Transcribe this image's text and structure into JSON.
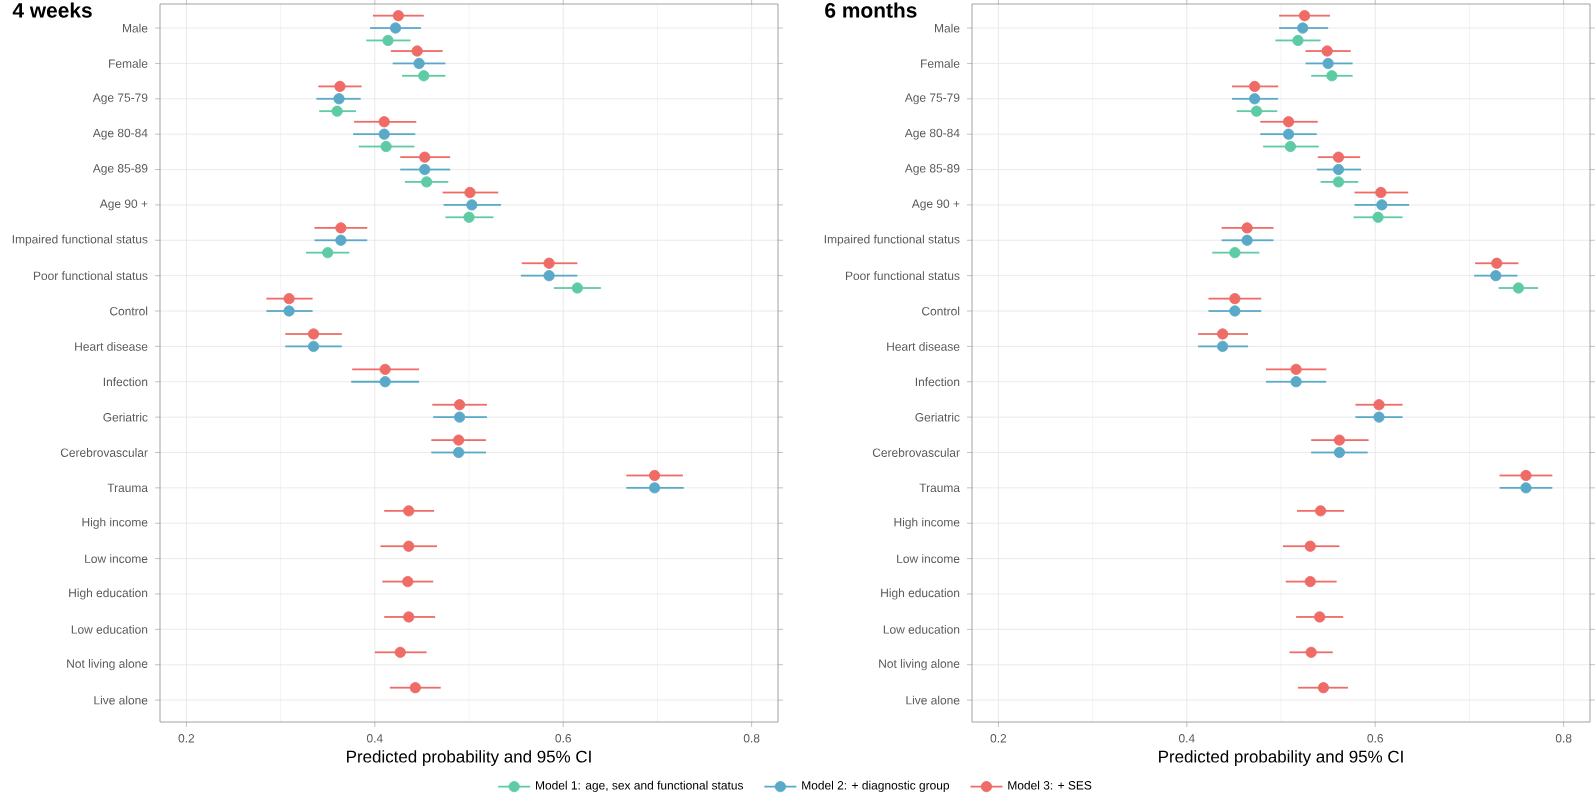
{
  "chart_data": [
    {
      "type": "scatter",
      "orientation": "horizontal",
      "title": "4 weeks",
      "xlabel": "Predicted probability and 95% CI",
      "categories": [
        "Male",
        "Female",
        "Age 75-79",
        "Age 80-84",
        "Age 85-89",
        "Age 90 +",
        "Impaired functional status",
        "Poor functional status",
        "Control",
        "Heart disease",
        "Infection",
        "Geriatric",
        "Cerebrovascular",
        "Trauma",
        "High income",
        "Low income",
        "High education",
        "Low education",
        "Not living alone",
        "Live alone"
      ],
      "xlim": [
        0.172,
        0.828
      ],
      "xticks": [
        0.2,
        0.4,
        0.6,
        0.8
      ],
      "grid": true,
      "legend": "bottom",
      "series": [
        {
          "name": "Model 1: age, sex and functional status",
          "color": "#5ecba4",
          "values": [
            0.414,
            0.452,
            0.36,
            0.412,
            0.455,
            0.5,
            0.35,
            0.615,
            null,
            null,
            null,
            null,
            null,
            null,
            null,
            null,
            null,
            null,
            null,
            null
          ],
          "errors": [
            [
              0.391,
              0.438
            ],
            [
              0.429,
              0.475
            ],
            [
              0.341,
              0.38
            ],
            [
              0.383,
              0.442
            ],
            [
              0.432,
              0.478
            ],
            [
              0.475,
              0.526
            ],
            [
              0.327,
              0.373
            ],
            [
              0.59,
              0.64
            ],
            null,
            null,
            null,
            null,
            null,
            null,
            null,
            null,
            null,
            null,
            null,
            null
          ]
        },
        {
          "name": "Model 2: + diagnostic group",
          "color": "#5aa9c9",
          "values": [
            0.422,
            0.447,
            0.362,
            0.41,
            0.453,
            0.503,
            0.364,
            0.585,
            0.309,
            0.335,
            0.411,
            0.49,
            0.489,
            0.697,
            null,
            null,
            null,
            null,
            null,
            null
          ],
          "errors": [
            [
              0.395,
              0.449
            ],
            [
              0.419,
              0.475
            ],
            [
              0.338,
              0.385
            ],
            [
              0.377,
              0.443
            ],
            [
              0.427,
              0.48
            ],
            [
              0.473,
              0.534
            ],
            [
              0.336,
              0.392
            ],
            [
              0.555,
              0.615
            ],
            [
              0.285,
              0.334
            ],
            [
              0.305,
              0.365
            ],
            [
              0.375,
              0.447
            ],
            [
              0.462,
              0.519
            ],
            [
              0.46,
              0.518
            ],
            [
              0.667,
              0.728
            ],
            null,
            null,
            null,
            null,
            null,
            null
          ]
        },
        {
          "name": "Model 3: + SES",
          "color": "#ee6b66",
          "values": [
            0.425,
            0.445,
            0.363,
            0.41,
            0.453,
            0.501,
            0.364,
            0.585,
            0.309,
            0.335,
            0.411,
            0.49,
            0.489,
            0.697,
            0.436,
            0.436,
            0.435,
            0.436,
            0.427,
            0.443
          ],
          "errors": [
            [
              0.398,
              0.452
            ],
            [
              0.417,
              0.472
            ],
            [
              0.34,
              0.386
            ],
            [
              0.378,
              0.444
            ],
            [
              0.427,
              0.48
            ],
            [
              0.472,
              0.531
            ],
            [
              0.336,
              0.392
            ],
            [
              0.556,
              0.615
            ],
            [
              0.285,
              0.334
            ],
            [
              0.305,
              0.365
            ],
            [
              0.376,
              0.447
            ],
            [
              0.461,
              0.519
            ],
            [
              0.46,
              0.518
            ],
            [
              0.667,
              0.727
            ],
            [
              0.41,
              0.463
            ],
            [
              0.406,
              0.466
            ],
            [
              0.408,
              0.462
            ],
            [
              0.41,
              0.464
            ],
            [
              0.4,
              0.455
            ],
            [
              0.416,
              0.47
            ]
          ]
        }
      ]
    },
    {
      "type": "scatter",
      "orientation": "horizontal",
      "title": "6 months",
      "xlabel": "Predicted probability and 95% CI",
      "categories": [
        "Male",
        "Female",
        "Age 75-79",
        "Age 80-84",
        "Age 85-89",
        "Age 90 +",
        "Impaired functional status",
        "Poor functional status",
        "Control",
        "Heart disease",
        "Infection",
        "Geriatric",
        "Cerebrovascular",
        "Trauma",
        "High income",
        "Low income",
        "High education",
        "Low education",
        "Not living alone",
        "Live alone"
      ],
      "xlim": [
        0.172,
        0.828
      ],
      "xticks": [
        0.2,
        0.4,
        0.6,
        0.8
      ],
      "grid": true,
      "series": [
        {
          "color": "#5ecba4",
          "values": [
            0.518,
            0.554,
            0.474,
            0.51,
            0.561,
            0.603,
            0.451,
            0.752,
            null,
            null,
            null,
            null,
            null,
            null,
            null,
            null,
            null,
            null,
            null,
            null
          ],
          "errors": [
            [
              0.494,
              0.542
            ],
            [
              0.532,
              0.576
            ],
            [
              0.453,
              0.496
            ],
            [
              0.481,
              0.54
            ],
            [
              0.542,
              0.582
            ],
            [
              0.577,
              0.629
            ],
            [
              0.427,
              0.477
            ],
            [
              0.731,
              0.773
            ],
            null,
            null,
            null,
            null,
            null,
            null,
            null,
            null,
            null,
            null,
            null,
            null
          ]
        },
        {
          "color": "#5aa9c9",
          "values": [
            0.523,
            0.55,
            0.472,
            0.508,
            0.561,
            0.607,
            0.464,
            0.728,
            0.451,
            0.438,
            0.516,
            0.604,
            0.562,
            0.76,
            null,
            null,
            null,
            null,
            null,
            null
          ],
          "errors": [
            [
              0.498,
              0.55
            ],
            [
              0.526,
              0.576
            ],
            [
              0.448,
              0.497
            ],
            [
              0.478,
              0.538
            ],
            [
              0.538,
              0.585
            ],
            [
              0.578,
              0.636
            ],
            [
              0.437,
              0.492
            ],
            [
              0.705,
              0.751
            ],
            [
              0.423,
              0.479
            ],
            [
              0.412,
              0.465
            ],
            [
              0.484,
              0.548
            ],
            [
              0.579,
              0.629
            ],
            [
              0.532,
              0.592
            ],
            [
              0.732,
              0.788
            ],
            null,
            null,
            null,
            null,
            null,
            null
          ]
        },
        {
          "color": "#ee6b66",
          "values": [
            0.525,
            0.549,
            0.472,
            0.508,
            0.561,
            0.606,
            0.464,
            0.729,
            0.451,
            0.438,
            0.516,
            0.604,
            0.562,
            0.76,
            0.542,
            0.531,
            0.531,
            0.541,
            0.532,
            0.545
          ],
          "errors": [
            [
              0.498,
              0.552
            ],
            [
              0.526,
              0.574
            ],
            [
              0.448,
              0.497
            ],
            [
              0.478,
              0.539
            ],
            [
              0.539,
              0.584
            ],
            [
              0.578,
              0.635
            ],
            [
              0.437,
              0.492
            ],
            [
              0.706,
              0.752
            ],
            [
              0.423,
              0.479
            ],
            [
              0.412,
              0.465
            ],
            [
              0.484,
              0.548
            ],
            [
              0.579,
              0.629
            ],
            [
              0.532,
              0.593
            ],
            [
              0.732,
              0.788
            ],
            [
              0.517,
              0.567
            ],
            [
              0.502,
              0.562
            ],
            [
              0.505,
              0.559
            ],
            [
              0.516,
              0.566
            ],
            [
              0.509,
              0.555
            ],
            [
              0.518,
              0.571
            ]
          ]
        }
      ]
    }
  ]
}
